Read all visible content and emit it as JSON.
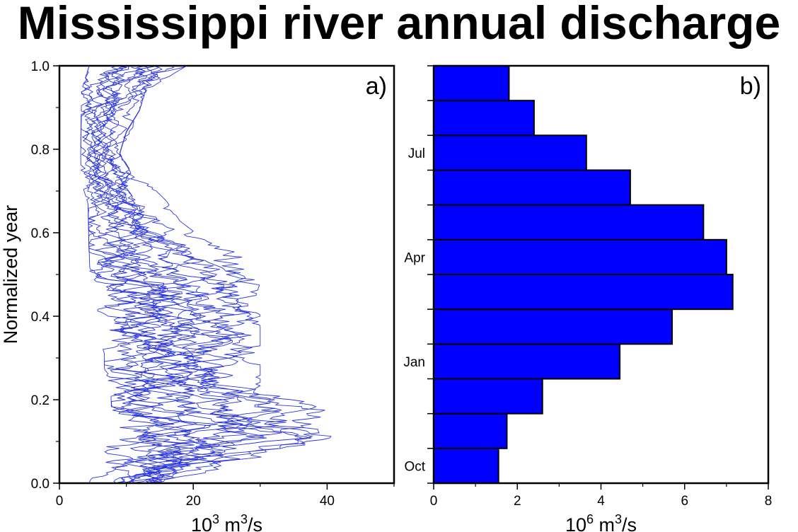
{
  "title": "Mississippi river annual discharge",
  "chart_data": [
    {
      "panel": "a)",
      "type": "line",
      "ylabel": "Normalized year",
      "xlabel_base": "10",
      "xlabel_exp": "3",
      "xlabel_unit": " m",
      "xlabel_unit_exp": "3",
      "xlabel_tail": "/s",
      "xlim": [
        0,
        50
      ],
      "ylim": [
        0,
        1
      ],
      "xticks": [
        0,
        20,
        40
      ],
      "xtick_labels": [
        "0",
        "20",
        "40"
      ],
      "yticks": [
        0,
        0.2,
        0.4,
        0.6,
        0.8,
        1.0
      ],
      "ytick_labels": [
        "0.0",
        "0.2",
        "0.4",
        "0.6",
        "0.8",
        "1.0"
      ],
      "line_color": "#2a35e0",
      "series_count": 16,
      "series_profile": {
        "y": [
          0.0,
          0.05,
          0.1,
          0.15,
          0.2,
          0.25,
          0.3,
          0.35,
          0.4,
          0.45,
          0.5,
          0.55,
          0.6,
          0.65,
          0.7,
          0.75,
          0.8,
          0.85,
          0.9,
          0.95,
          1.0
        ],
        "x_min": [
          4,
          5,
          6,
          7,
          7,
          7,
          6,
          6,
          5,
          5,
          5,
          4,
          4,
          4,
          4,
          3,
          3,
          3,
          3,
          3,
          4
        ],
        "x_max": [
          18,
          30,
          40,
          41,
          33,
          30,
          30,
          30,
          30,
          29,
          30,
          22,
          18,
          16,
          13,
          11,
          9,
          10,
          12,
          13,
          19
        ]
      }
    },
    {
      "panel": "b)",
      "type": "bar",
      "orientation": "horizontal",
      "xlabel_base": "10",
      "xlabel_exp": "6",
      "xlabel_unit": " m",
      "xlabel_unit_exp": "3",
      "xlabel_tail": "/s",
      "xlim": [
        0,
        8
      ],
      "xticks": [
        0,
        2,
        4,
        6,
        8
      ],
      "xtick_labels": [
        "0",
        "2",
        "4",
        "6",
        "8"
      ],
      "month_labels": [
        {
          "label": "Oct",
          "slot": 0.5
        },
        {
          "label": "Jan",
          "slot": 3.5
        },
        {
          "label": "Apr",
          "slot": 6.5
        },
        {
          "label": "Jul",
          "slot": 9.5
        }
      ],
      "values": [
        1.55,
        1.75,
        2.6,
        4.45,
        5.7,
        7.15,
        7.0,
        6.45,
        4.7,
        3.65,
        2.4,
        1.8
      ],
      "bar_color": "#0000ff"
    }
  ]
}
